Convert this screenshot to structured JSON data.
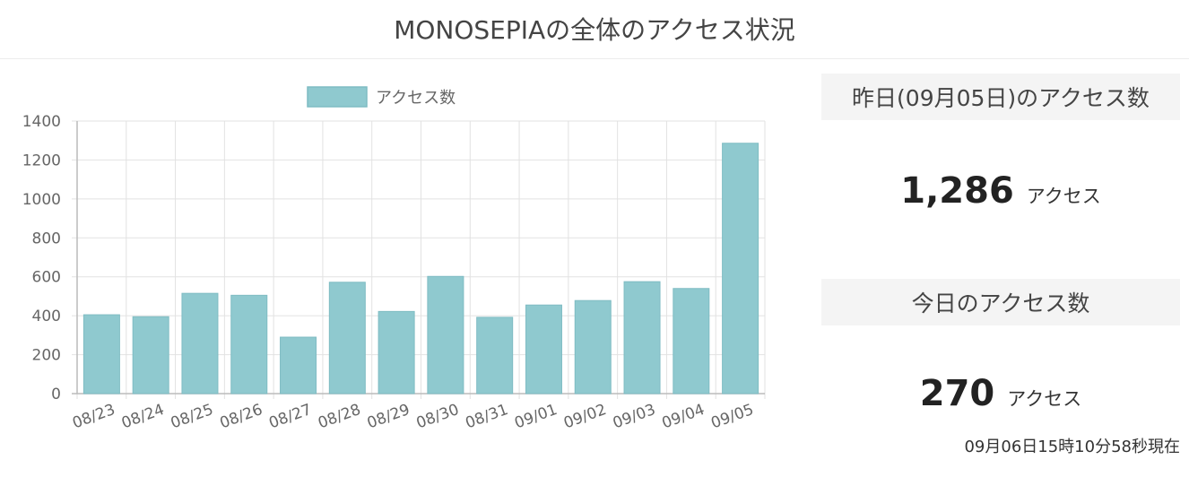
{
  "page_title": "MONOSEPIAの全体のアクセス状況",
  "yesterday": {
    "header": "昨日(09月05日)のアクセス数",
    "value": "1,286",
    "unit": "アクセス"
  },
  "today": {
    "header": "今日のアクセス数",
    "value": "270",
    "unit": "アクセス"
  },
  "timestamp": "09月06日15時10分58秒現在",
  "colors": {
    "bar_fill": "#8fc9cf",
    "bar_stroke": "#7fbcc3"
  },
  "chart_data": {
    "type": "bar",
    "categories": [
      "08/23",
      "08/24",
      "08/25",
      "08/26",
      "08/27",
      "08/28",
      "08/29",
      "08/30",
      "08/31",
      "09/01",
      "09/02",
      "09/03",
      "09/04",
      "09/05"
    ],
    "series": [
      {
        "name": "アクセス数",
        "values": [
          405,
          395,
          515,
          505,
          290,
          572,
          422,
          602,
          392,
          455,
          478,
          575,
          540,
          1286
        ]
      }
    ],
    "ylim": [
      0,
      1400
    ],
    "yticks": [
      0,
      200,
      400,
      600,
      800,
      1000,
      1200,
      1400
    ],
    "legend": "top",
    "grid": true
  }
}
